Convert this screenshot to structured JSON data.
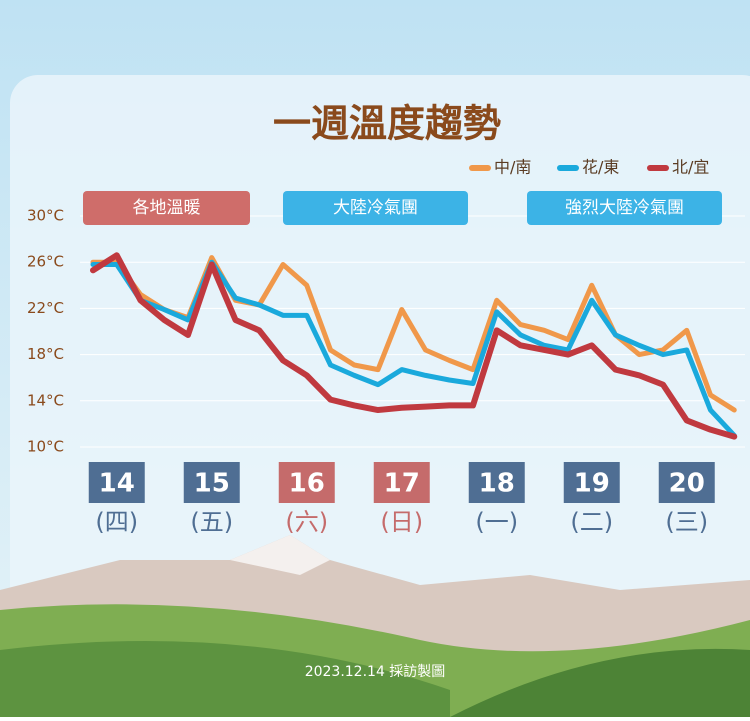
{
  "chart_data": {
    "type": "line",
    "title": "一週溫度趨勢",
    "categories": [
      null,
      "14",
      null,
      null,
      null,
      "15",
      null,
      null,
      null,
      "16",
      null,
      null,
      null,
      "17",
      null,
      null,
      null,
      "18",
      null,
      null,
      null,
      "19",
      null,
      null,
      null,
      "20",
      null,
      null
    ],
    "weekday_labels": [
      null,
      "(四)",
      null,
      null,
      null,
      "(五)",
      null,
      null,
      null,
      "(六)",
      null,
      null,
      null,
      "(日)",
      null,
      null,
      null,
      "(一)",
      null,
      null,
      null,
      "(二)",
      null,
      null,
      null,
      "(三)",
      null,
      null
    ],
    "day_colors": [
      null,
      "#4f6e93",
      null,
      null,
      null,
      "#4f6e93",
      null,
      null,
      null,
      "#c56b6b",
      null,
      null,
      null,
      "#c56b6b",
      null,
      null,
      null,
      "#4f6e93",
      null,
      null,
      null,
      "#4f6e93",
      null,
      null,
      null,
      "#4f6e93",
      null,
      null
    ],
    "series": [
      {
        "name": "中/南",
        "color": "#f0984a",
        "values": [
          26.0,
          26.0,
          23.2,
          21.9,
          21.2,
          26.4,
          22.7,
          22.3,
          25.8,
          24.0,
          18.4,
          17.1,
          16.7,
          21.9,
          18.4,
          17.5,
          16.7,
          22.7,
          20.6,
          20.1,
          19.3,
          24.0,
          19.7,
          18.0,
          18.4,
          20.1,
          14.5,
          13.2
        ]
      },
      {
        "name": "花/東",
        "color": "#1aa9dc",
        "values": [
          25.8,
          25.8,
          22.7,
          21.9,
          21.0,
          26.0,
          22.9,
          22.3,
          21.4,
          21.4,
          17.1,
          16.2,
          15.4,
          16.7,
          16.2,
          15.8,
          15.5,
          21.7,
          19.7,
          18.8,
          18.4,
          22.7,
          19.7,
          18.8,
          18.0,
          18.4,
          13.2,
          11.0
        ]
      },
      {
        "name": "北/宜",
        "color": "#c0393f",
        "values": [
          25.3,
          26.6,
          22.7,
          21.0,
          19.7,
          25.8,
          21.0,
          20.1,
          17.5,
          16.2,
          14.1,
          13.6,
          13.2,
          13.4,
          13.5,
          13.6,
          13.6,
          20.1,
          18.8,
          18.4,
          18.0,
          18.8,
          16.7,
          16.2,
          15.4,
          12.3,
          11.5,
          10.9
        ]
      }
    ],
    "ylim": [
      10,
      30
    ],
    "yticks": [
      {
        "value": 10,
        "label": "10°C"
      },
      {
        "value": 14,
        "label": "14°C"
      },
      {
        "value": 18,
        "label": "18°C"
      },
      {
        "value": 22,
        "label": "22°C"
      },
      {
        "value": 26,
        "label": "26°C"
      },
      {
        "value": 30,
        "label": "30°C"
      }
    ],
    "grid": true,
    "legend": "top-right",
    "annotations": [
      {
        "text": "各地溫暖",
        "color": "#cf6d6a"
      },
      {
        "text": "大陸冷氣團",
        "color": "#3cb3e6"
      },
      {
        "text": "強烈大陸冷氣團",
        "color": "#3cb3e6"
      }
    ],
    "footer": "2023.12.14 採訪製圖"
  }
}
